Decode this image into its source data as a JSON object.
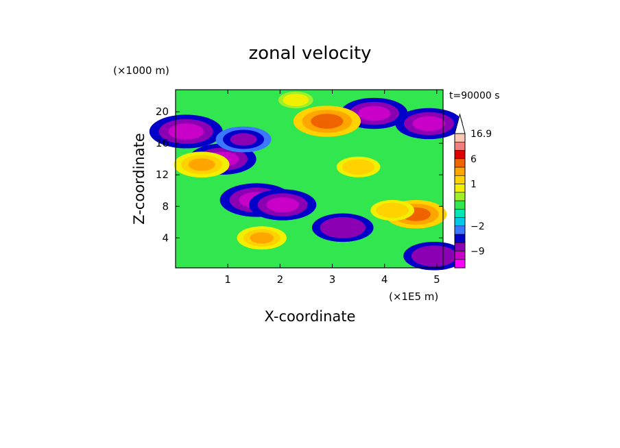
{
  "chart_data": {
    "type": "heatmap",
    "title": "zonal velocity",
    "xlabel": "X-coordinate",
    "ylabel": "Z-coordinate",
    "x_unit": "(×1E5 m)",
    "y_unit": "(×1000 m)",
    "time_label": "t=90000 s",
    "xlim": [
      0,
      5.12
    ],
    "ylim": [
      0.2,
      22.8
    ],
    "x_ticks": [
      "1",
      "2",
      "3",
      "4",
      "5"
    ],
    "y_ticks": [
      "4",
      "8",
      "12",
      "16",
      "20"
    ],
    "colorbar": {
      "levels": [
        -12,
        -9,
        -6,
        -4,
        -2,
        -1,
        -0.5,
        0,
        0.5,
        1,
        2,
        4,
        6,
        9,
        12,
        16.9
      ],
      "colors": [
        "#ff00ff",
        "#c800c8",
        "#8c00b4",
        "#0000c8",
        "#3c78ff",
        "#00c8e6",
        "#00e6b4",
        "#32e650",
        "#a0f028",
        "#f0f000",
        "#ffd200",
        "#ffa500",
        "#f06400",
        "#dc0000",
        "#f08080",
        "#fac8b4"
      ],
      "tick_labels": [
        "16.9",
        "6",
        "1",
        "−2",
        "−9"
      ],
      "extend": "max"
    },
    "field_description_features": [
      {
        "x": 0.2,
        "z": 17.5,
        "u": -8
      },
      {
        "x": 0.9,
        "z": 14.0,
        "u": -7
      },
      {
        "x": 1.55,
        "z": 8.8,
        "u": -8
      },
      {
        "x": 2.05,
        "z": 8.2,
        "u": -7
      },
      {
        "x": 1.3,
        "z": 16.5,
        "u": -5
      },
      {
        "x": 3.2,
        "z": 5.3,
        "u": -6
      },
      {
        "x": 3.8,
        "z": 19.8,
        "u": -7
      },
      {
        "x": 4.85,
        "z": 18.5,
        "u": -7
      },
      {
        "x": 4.95,
        "z": 1.7,
        "u": -6
      },
      {
        "x": 2.9,
        "z": 18.8,
        "u": 7
      },
      {
        "x": 4.6,
        "z": 7.0,
        "u": 6
      },
      {
        "x": 0.5,
        "z": 13.3,
        "u": 5
      },
      {
        "x": 1.65,
        "z": 4.0,
        "u": 4
      },
      {
        "x": 4.15,
        "z": 7.5,
        "u": 3
      },
      {
        "x": 3.5,
        "z": 13.0,
        "u": 3
      },
      {
        "x": 2.3,
        "z": 21.5,
        "u": 1.5
      }
    ]
  }
}
